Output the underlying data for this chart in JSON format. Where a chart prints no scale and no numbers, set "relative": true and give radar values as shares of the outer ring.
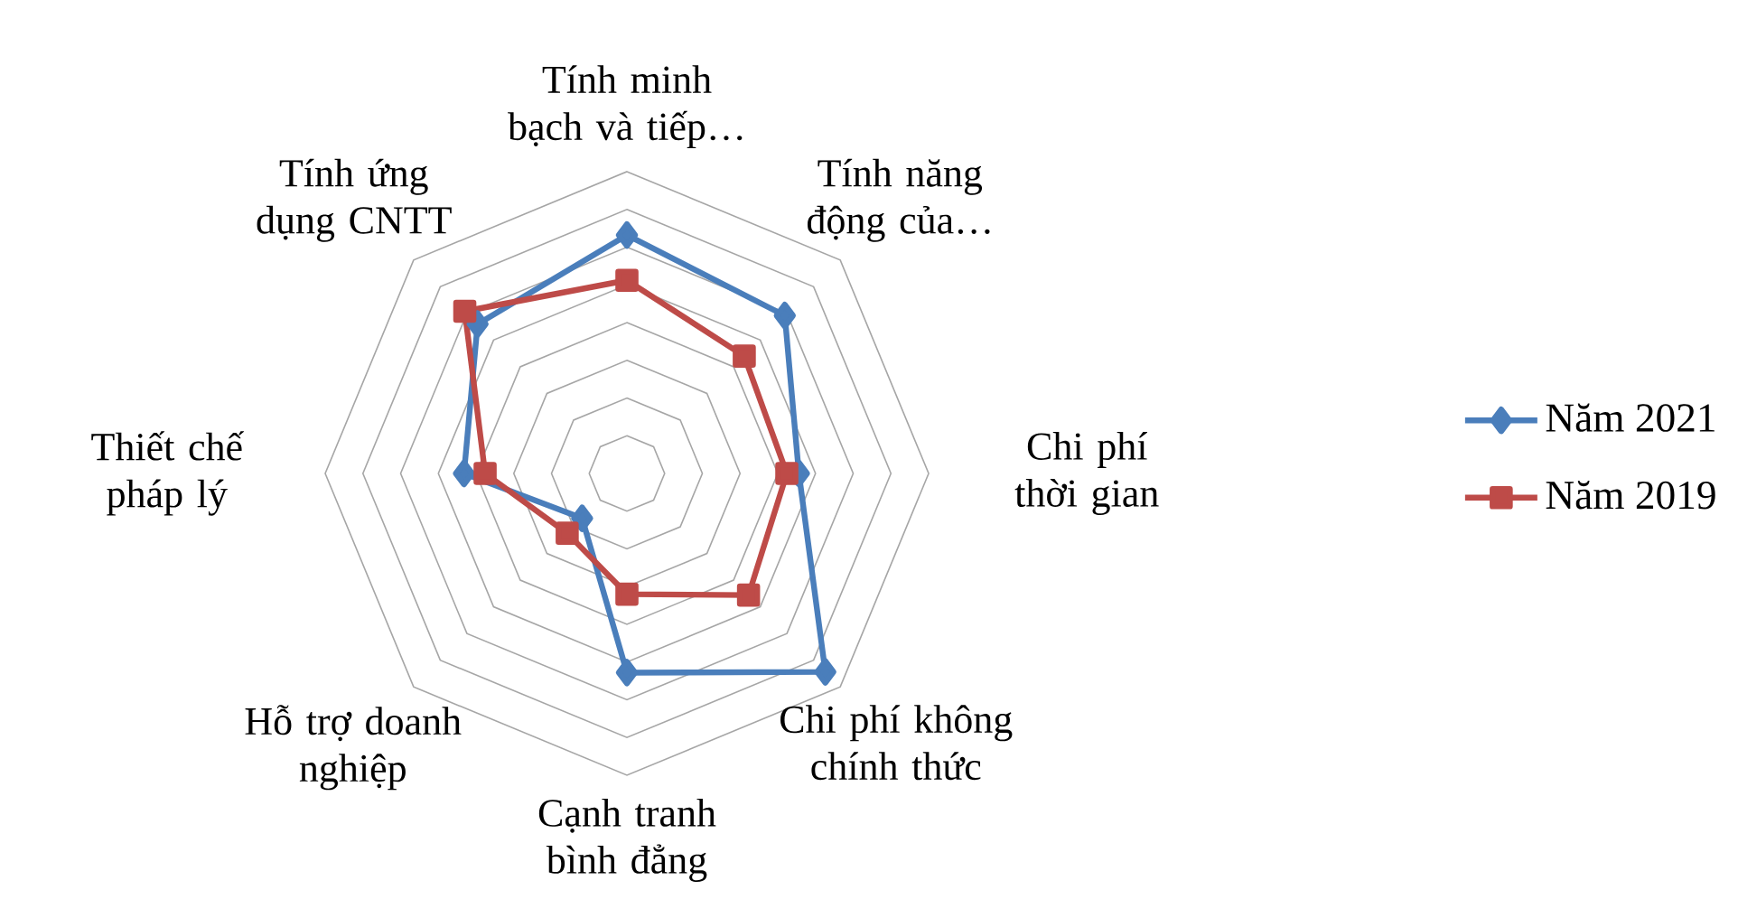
{
  "chart_data": {
    "type": "radar",
    "relative": true,
    "grid": true,
    "legend": "right",
    "categories": [
      "Tính minh bạch và tiếp…",
      "Tính năng động của…",
      "Chi phí thời gian",
      "Chi phí không chính thức",
      "Cạnh tranh bình đẳng",
      "Hỗ trợ doanh nghiệp",
      "Thiết chế pháp lý",
      "Tính ứng dụng CNTT"
    ],
    "series": [
      {
        "name": "Năm 2021",
        "color": "#4a7ebb",
        "marker": "diamond",
        "values": [
          0.79,
          0.74,
          0.57,
          0.93,
          0.66,
          0.21,
          0.54,
          0.7
        ]
      },
      {
        "name": "Năm 2019",
        "color": "#be4b48",
        "marker": "square",
        "values": [
          0.64,
          0.55,
          0.53,
          0.57,
          0.4,
          0.28,
          0.47,
          0.76
        ]
      }
    ]
  }
}
